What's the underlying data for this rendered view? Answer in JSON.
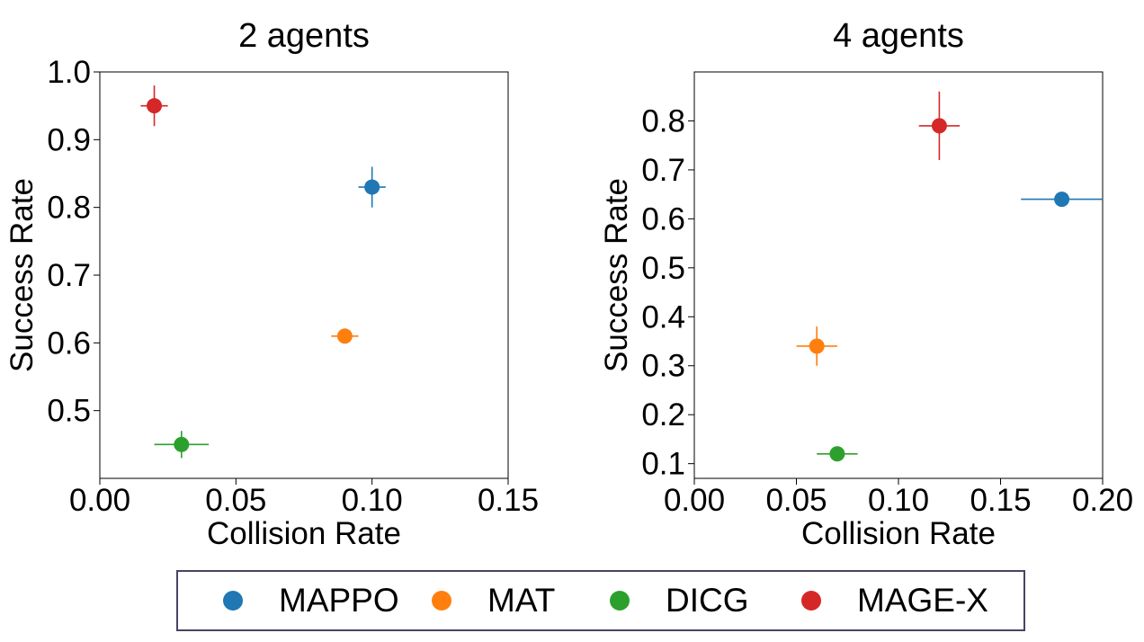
{
  "chart_data": [
    {
      "type": "scatter",
      "title": "2 agents",
      "xlabel": "Collision Rate",
      "ylabel": "Success Rate",
      "xlim": [
        0,
        0.15
      ],
      "ylim": [
        0.4,
        1.0
      ],
      "xticks": [
        "0.00",
        "0.05",
        "0.10",
        "0.15"
      ],
      "xtick_values": [
        0,
        0.05,
        0.1,
        0.15
      ],
      "yticks": [
        "0.5",
        "0.6",
        "0.7",
        "0.8",
        "0.9",
        "1.0"
      ],
      "ytick_values": [
        0.5,
        0.6,
        0.7,
        0.8,
        0.9,
        1.0
      ],
      "grid": false,
      "points": [
        {
          "series": "MAPPO",
          "x": 0.1,
          "y": 0.83,
          "xerr": 0.005,
          "yerr": 0.03
        },
        {
          "series": "MAT",
          "x": 0.09,
          "y": 0.61,
          "xerr": 0.005,
          "yerr": 0.005
        },
        {
          "series": "DICG",
          "x": 0.03,
          "y": 0.45,
          "xerr": 0.01,
          "yerr": 0.02
        },
        {
          "series": "MAGE-X",
          "x": 0.02,
          "y": 0.95,
          "xerr": 0.005,
          "yerr": 0.03
        }
      ]
    },
    {
      "type": "scatter",
      "title": "4 agents",
      "xlabel": "Collision Rate",
      "ylabel": "Success Rate",
      "xlim": [
        0,
        0.2
      ],
      "ylim": [
        0.07,
        0.9
      ],
      "xticks": [
        "0.00",
        "0.05",
        "0.10",
        "0.15",
        "0.20"
      ],
      "xtick_values": [
        0,
        0.05,
        0.1,
        0.15,
        0.2
      ],
      "yticks": [
        "0.1",
        "0.2",
        "0.3",
        "0.4",
        "0.5",
        "0.6",
        "0.7",
        "0.8"
      ],
      "ytick_values": [
        0.1,
        0.2,
        0.3,
        0.4,
        0.5,
        0.6,
        0.7,
        0.8
      ],
      "grid": false,
      "points": [
        {
          "series": "MAPPO",
          "x": 0.18,
          "y": 0.64,
          "xerr": 0.02,
          "yerr": 0.005
        },
        {
          "series": "MAT",
          "x": 0.06,
          "y": 0.34,
          "xerr": 0.01,
          "yerr": 0.04
        },
        {
          "series": "DICG",
          "x": 0.07,
          "y": 0.12,
          "xerr": 0.01,
          "yerr": 0.005
        },
        {
          "series": "MAGE-X",
          "x": 0.12,
          "y": 0.79,
          "xerr": 0.01,
          "yerr": 0.07
        }
      ]
    }
  ],
  "legend": {
    "placement": "bottom-center",
    "items": [
      {
        "name": "MAPPO",
        "color": "#1f77b4"
      },
      {
        "name": "MAT",
        "color": "#ff7f0e"
      },
      {
        "name": "DICG",
        "color": "#2ca02c"
      },
      {
        "name": "MAGE-X",
        "color": "#d62728"
      }
    ]
  }
}
